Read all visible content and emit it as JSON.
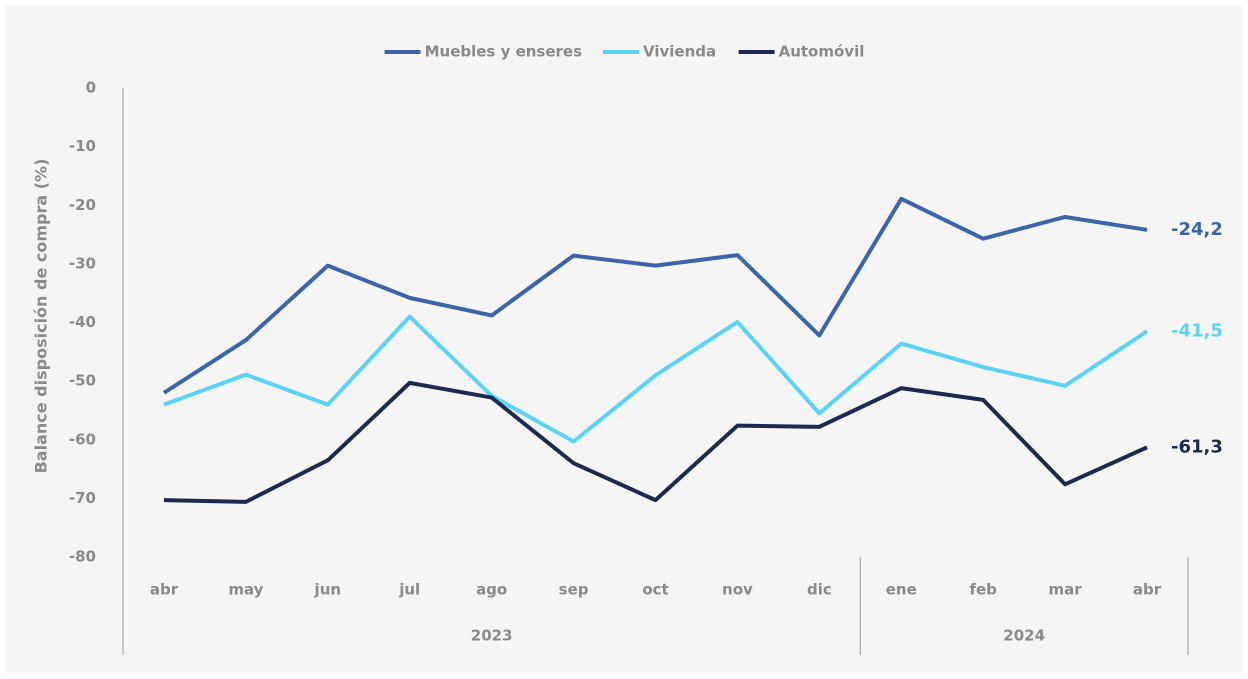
{
  "chart_data": {
    "type": "line",
    "y_label": "Balance disposición de compra (%)",
    "categories": [
      "abr",
      "may",
      "jun",
      "jul",
      "ago",
      "sep",
      "oct",
      "nov",
      "dic",
      "ene",
      "feb",
      "mar",
      "abr"
    ],
    "groups": [
      {
        "label": "2023",
        "count": 9
      },
      {
        "label": "2024",
        "count": 4
      }
    ],
    "series": [
      {
        "name": "Muebles y enseres",
        "color": "#3c64a8",
        "values": [
          -52,
          -43,
          -30.3,
          -35.8,
          -38.8,
          -28.6,
          -30.3,
          -28.5,
          -42.2,
          -18.9,
          -25.7,
          -22,
          -24.2
        ],
        "value_labels": [
          null,
          null,
          null,
          null,
          null,
          null,
          null,
          null,
          null,
          null,
          null,
          null,
          "-24,2"
        ]
      },
      {
        "name": "Vivienda",
        "color": "#5bd3f5",
        "values": [
          -54,
          -48.9,
          -54,
          -39,
          -52.5,
          -60.3,
          -49,
          -39.9,
          -55.5,
          -43.6,
          -47.6,
          -50.8,
          -41.5
        ],
        "value_labels": [
          null,
          null,
          null,
          null,
          null,
          null,
          null,
          null,
          null,
          null,
          null,
          null,
          "-41,5"
        ]
      },
      {
        "name": "Automóvil",
        "color": "#1a2a50",
        "values": [
          -70.3,
          -70.6,
          -63.5,
          -50.3,
          -52.8,
          -64,
          -70.3,
          -57.6,
          -57.8,
          -51.2,
          -53.2,
          -67.6,
          -61.3
        ],
        "value_labels": [
          null,
          null,
          null,
          null,
          null,
          null,
          null,
          null,
          null,
          null,
          null,
          null,
          "-61,3"
        ]
      }
    ],
    "ylim": [
      -80,
      0
    ],
    "yticks": [
      0,
      -10,
      -20,
      -30,
      -40,
      -50,
      -60,
      -70,
      -80
    ],
    "legend": "top"
  }
}
